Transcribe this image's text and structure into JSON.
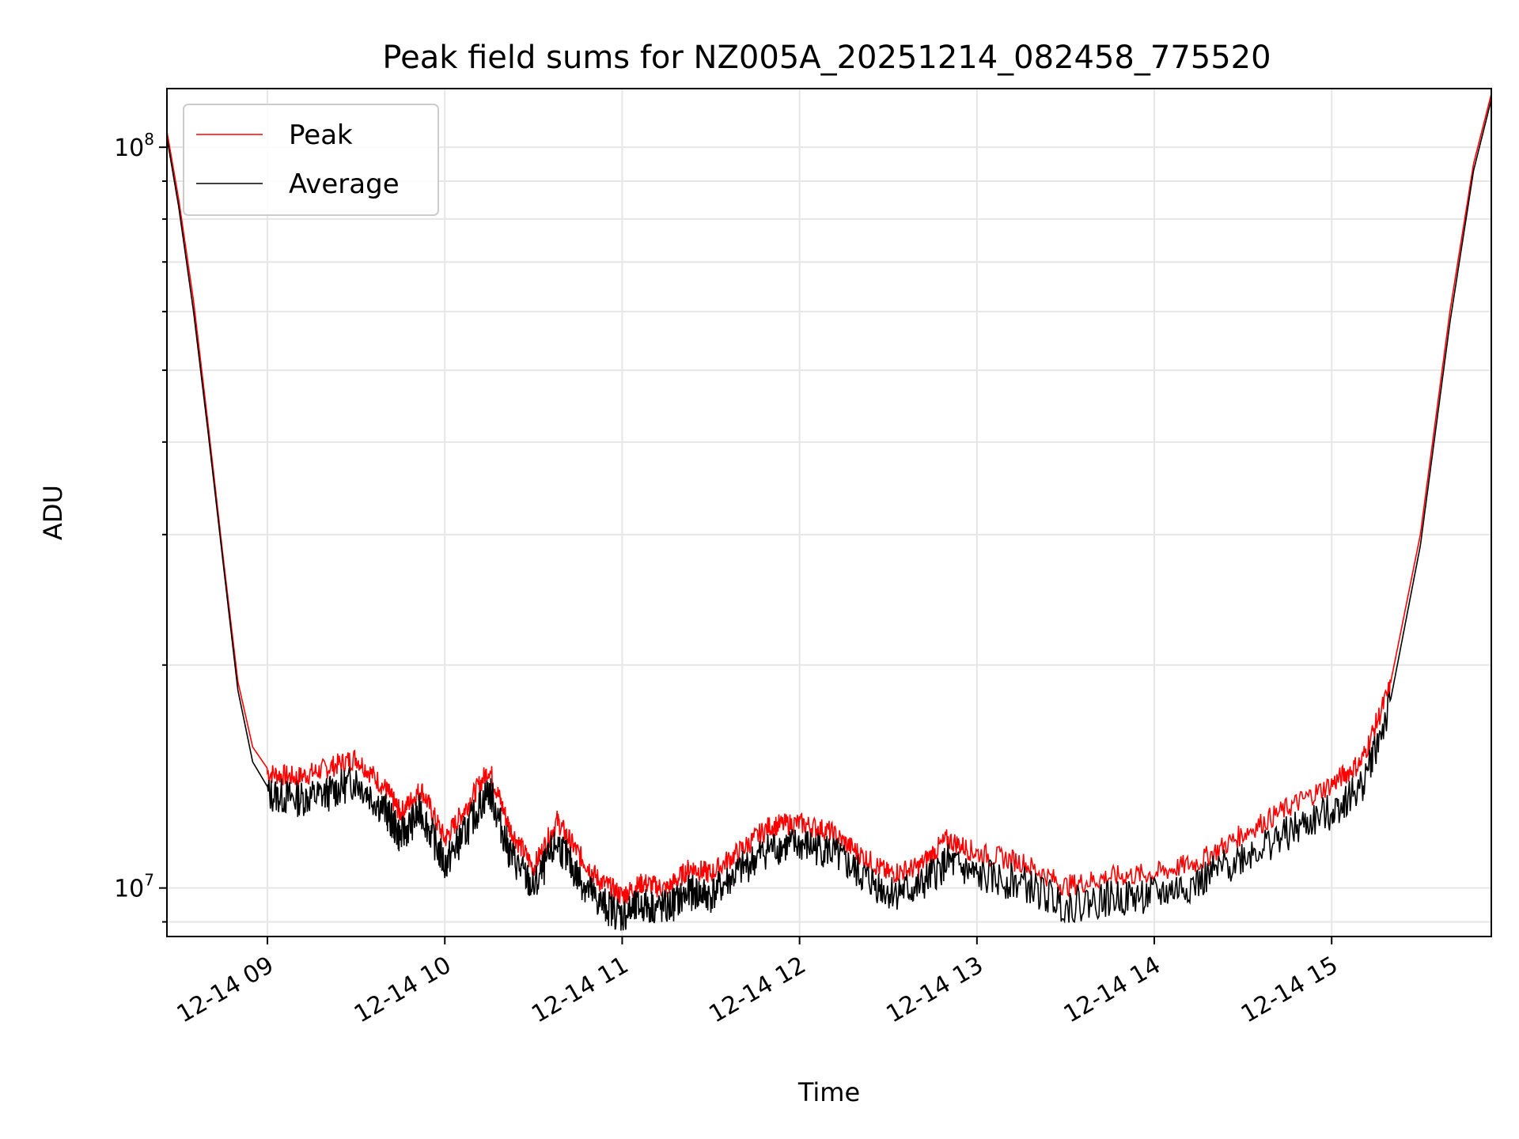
{
  "chart_data": {
    "type": "line",
    "title": "Peak field sums for NZ005A_20251214_082458_775520",
    "xlabel": "Time",
    "ylabel": "ADU",
    "yscale": "log",
    "xlim": [
      "2025-12-14 08:26",
      "2025-12-14 15:54"
    ],
    "ylim": [
      8600000,
      120000000
    ],
    "xticks": [
      "12-14 09",
      "12-14 10",
      "12-14 11",
      "12-14 12",
      "12-14 13",
      "12-14 14",
      "12-14 15"
    ],
    "ytick_major": [
      {
        "value": 10000000,
        "label": "10",
        "exp": "7"
      },
      {
        "value": 100000000,
        "label": "10",
        "exp": "8"
      }
    ],
    "grid": true,
    "legend_position": "top-left",
    "series": [
      {
        "name": "Peak",
        "color": "#ff0000",
        "x": [
          "2025-12-14 08:26",
          "2025-12-14 08:30",
          "2025-12-14 08:35",
          "2025-12-14 08:40",
          "2025-12-14 08:45",
          "2025-12-14 08:50",
          "2025-12-14 08:55",
          "2025-12-14 09:00",
          "2025-12-14 09:10",
          "2025-12-14 09:20",
          "2025-12-14 09:30",
          "2025-12-14 09:40",
          "2025-12-14 09:45",
          "2025-12-14 09:52",
          "2025-12-14 10:00",
          "2025-12-14 10:07",
          "2025-12-14 10:15",
          "2025-12-14 10:22",
          "2025-12-14 10:30",
          "2025-12-14 10:38",
          "2025-12-14 10:45",
          "2025-12-14 10:52",
          "2025-12-14 11:00",
          "2025-12-14 11:07",
          "2025-12-14 11:15",
          "2025-12-14 11:23",
          "2025-12-14 11:30",
          "2025-12-14 11:40",
          "2025-12-14 11:50",
          "2025-12-14 12:00",
          "2025-12-14 12:10",
          "2025-12-14 12:20",
          "2025-12-14 12:30",
          "2025-12-14 12:40",
          "2025-12-14 12:50",
          "2025-12-14 13:00",
          "2025-12-14 13:15",
          "2025-12-14 13:30",
          "2025-12-14 13:45",
          "2025-12-14 14:00",
          "2025-12-14 14:15",
          "2025-12-14 14:30",
          "2025-12-14 14:45",
          "2025-12-14 15:00",
          "2025-12-14 15:10",
          "2025-12-14 15:20",
          "2025-12-14 15:30",
          "2025-12-14 15:40",
          "2025-12-14 15:48",
          "2025-12-14 15:54"
        ],
        "y": [
          105000000,
          85000000,
          62000000,
          42000000,
          28000000,
          19000000,
          15500000,
          14500000,
          14300000,
          14700000,
          15200000,
          13800000,
          12800000,
          13800000,
          11800000,
          13000000,
          14700000,
          12200000,
          10800000,
          12500000,
          11300000,
          10400000,
          9900000,
          10300000,
          10100000,
          10800000,
          10600000,
          11400000,
          12300000,
          12400000,
          12100000,
          11300000,
          10600000,
          10800000,
          11800000,
          11300000,
          11000000,
          10200000,
          10500000,
          10600000,
          11000000,
          12000000,
          13000000,
          14000000,
          15000000,
          19000000,
          30000000,
          60000000,
          95000000,
          118000000
        ]
      },
      {
        "name": "Average",
        "color": "#000000",
        "x": [
          "2025-12-14 08:26",
          "2025-12-14 08:30",
          "2025-12-14 08:35",
          "2025-12-14 08:40",
          "2025-12-14 08:45",
          "2025-12-14 08:50",
          "2025-12-14 08:55",
          "2025-12-14 09:00",
          "2025-12-14 09:10",
          "2025-12-14 09:20",
          "2025-12-14 09:30",
          "2025-12-14 09:40",
          "2025-12-14 09:45",
          "2025-12-14 09:52",
          "2025-12-14 10:00",
          "2025-12-14 10:07",
          "2025-12-14 10:15",
          "2025-12-14 10:22",
          "2025-12-14 10:30",
          "2025-12-14 10:38",
          "2025-12-14 10:45",
          "2025-12-14 10:52",
          "2025-12-14 11:00",
          "2025-12-14 11:07",
          "2025-12-14 11:15",
          "2025-12-14 11:23",
          "2025-12-14 11:30",
          "2025-12-14 11:40",
          "2025-12-14 11:50",
          "2025-12-14 12:00",
          "2025-12-14 12:10",
          "2025-12-14 12:20",
          "2025-12-14 12:30",
          "2025-12-14 12:40",
          "2025-12-14 12:50",
          "2025-12-14 13:00",
          "2025-12-14 13:15",
          "2025-12-14 13:30",
          "2025-12-14 13:45",
          "2025-12-14 14:00",
          "2025-12-14 14:15",
          "2025-12-14 14:30",
          "2025-12-14 14:45",
          "2025-12-14 15:00",
          "2025-12-14 15:10",
          "2025-12-14 15:20",
          "2025-12-14 15:30",
          "2025-12-14 15:40",
          "2025-12-14 15:48",
          "2025-12-14 15:54"
        ],
        "y": [
          103000000,
          83000000,
          60000000,
          41000000,
          27500000,
          18500000,
          14800000,
          13700000,
          13500000,
          13700000,
          14300000,
          13000000,
          12000000,
          13000000,
          11000000,
          12200000,
          13900000,
          11400000,
          10200000,
          11800000,
          10600000,
          9800000,
          9400000,
          9700000,
          9600000,
          10100000,
          10000000,
          10800000,
          11600000,
          11700000,
          11500000,
          10700000,
          10100000,
          10200000,
          11100000,
          10600000,
          10400000,
          9700000,
          9900000,
          10000000,
          10400000,
          11300000,
          12100000,
          13000000,
          14000000,
          18000000,
          29000000,
          58000000,
          93000000,
          116000000
        ]
      }
    ]
  }
}
